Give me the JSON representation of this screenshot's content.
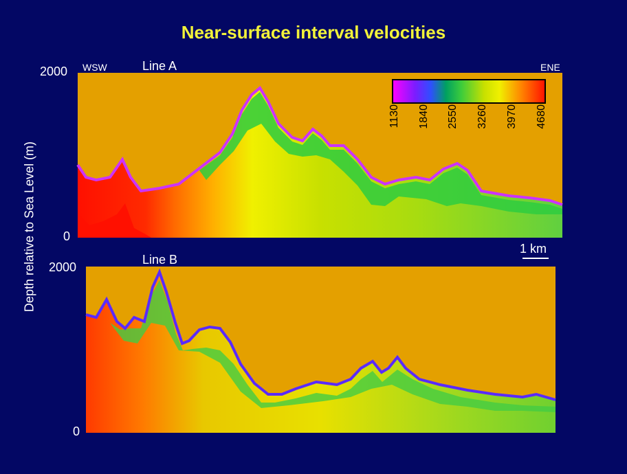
{
  "title": "Near-surface interval velocities",
  "y_axis_label": "Depth relative to Sea Level (m)",
  "panel_a": {
    "label": "Line A",
    "left_label": "WSW",
    "right_label": "ENE",
    "y_top": "2000",
    "y_bottom": "0"
  },
  "panel_b": {
    "label": "Line B",
    "y_top": "2000",
    "y_bottom": "0"
  },
  "scale_bar": "1 km",
  "colorbar": {
    "ticks": [
      "1130",
      "1840",
      "2550",
      "3260",
      "3970",
      "4680"
    ],
    "colors": [
      "#ff00ff",
      "#7a1dff",
      "#2f4fff",
      "#00a060",
      "#3ccc3c",
      "#c8e000",
      "#f0f000",
      "#ff8000",
      "#ff1000"
    ]
  },
  "colors": {
    "background": "#030764",
    "air": "#e4a000",
    "title": "#f2f23a"
  }
}
